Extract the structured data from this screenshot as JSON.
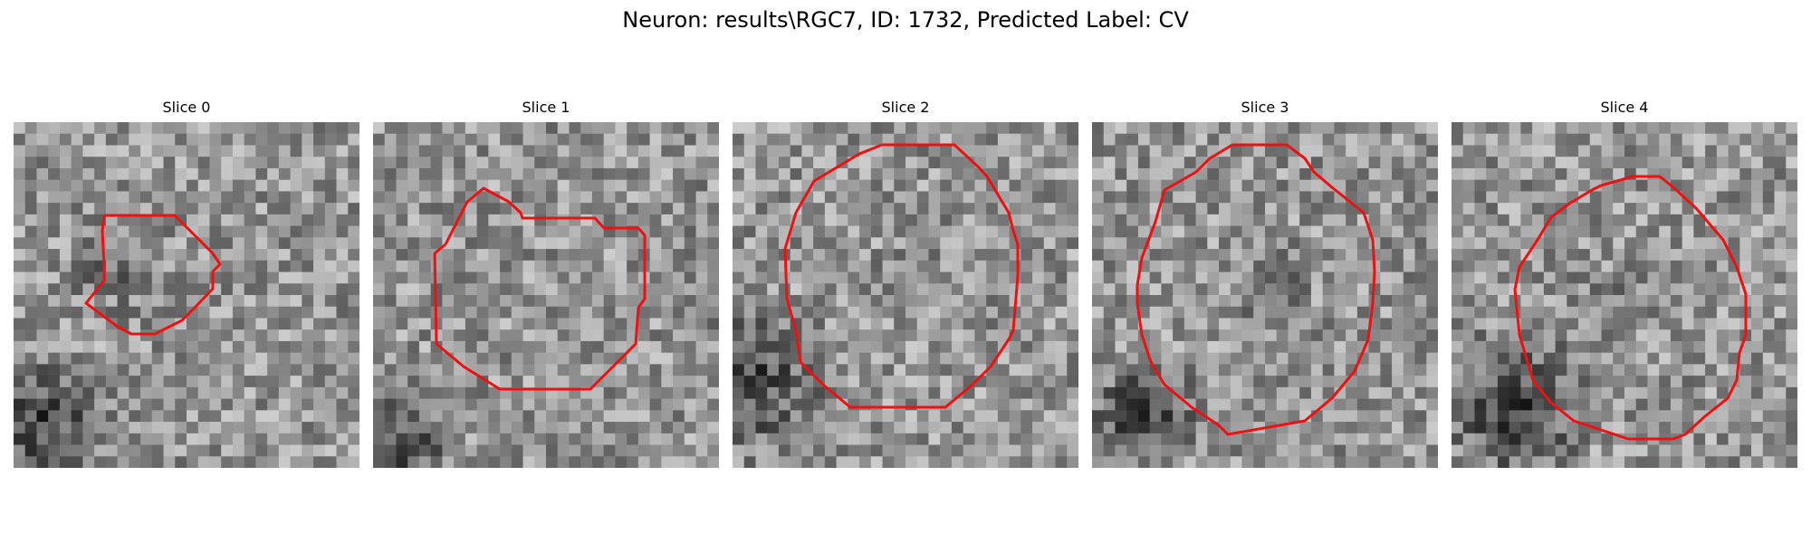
{
  "figure": {
    "title": "Neuron: results\\RGC7, ID: 1732, Predicted Label: CV",
    "contour_color": "#ee1111"
  },
  "slices": [
    {
      "label": "Slice 0"
    },
    {
      "label": "Slice 1"
    },
    {
      "label": "Slice 2"
    },
    {
      "label": "Slice 3"
    },
    {
      "label": "Slice 4"
    }
  ]
}
